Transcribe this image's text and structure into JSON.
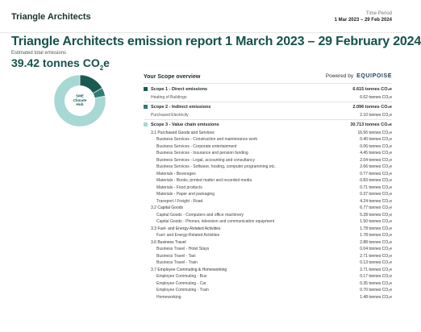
{
  "header": {
    "company": "Triangle Architects",
    "period_label": "Time Period",
    "period_value": "1 Mar 2023 – 29 Feb 2024"
  },
  "report": {
    "title": "Triangle Architects emission report 1 March 2023 – 29 February 2024",
    "total_label": "Estimated total emissions",
    "total_value": "39.42 tonnes CO",
    "total_value_sub": "2",
    "total_value_tail": "e"
  },
  "donut": {
    "center_lines": [
      "SME",
      "Climate",
      "Hub"
    ],
    "slices": [
      {
        "label": "Scope 1",
        "value": 6.615,
        "color": "#1b5a52"
      },
      {
        "label": "Scope 2",
        "value": 2.096,
        "color": "#2e7d74"
      },
      {
        "label": "Scope 3",
        "value": 30.713,
        "color": "#a7d8d3"
      }
    ]
  },
  "overview": {
    "title": "Your Scope overview",
    "powered_label": "Powered by",
    "brand": "EQUIPOISE"
  },
  "rows": [
    {
      "type": "scope",
      "color": "#1b5a52",
      "label": "Scope 1 - Direct emissions",
      "value": "6.615 tonnes CO₂e"
    },
    {
      "type": "sub",
      "label": "Heating of Buildings",
      "value": "6.62 tonnes CO₂e"
    },
    {
      "type": "scope",
      "color": "#2e7d74",
      "label": "Scope 2 - Indirect emissions",
      "value": "2.096 tonnes CO₂e"
    },
    {
      "type": "sub",
      "label": "Purchased Electricity",
      "value": "2.10 tonnes CO₂e"
    },
    {
      "type": "scope",
      "color": "#a7d8d3",
      "label": "Scope 3 - Value chain emissions",
      "value": "30.713 tonnes CO₂e"
    },
    {
      "type": "cat",
      "label": "3.1 Purchased Goods and Services",
      "value": "16.56 tonnes CO₂e"
    },
    {
      "type": "item",
      "label": "Business Services - Construction and maintenance work",
      "value": "0.40 tonnes CO₂e"
    },
    {
      "type": "item",
      "label": "Business Services - Corporate entertainment",
      "value": "0.06 tonnes CO₂e"
    },
    {
      "type": "item",
      "label": "Business Services - Insurance and pension funding",
      "value": "4.45 tonnes CO₂e"
    },
    {
      "type": "item",
      "label": "Business Services - Legal, accounting and consultancy",
      "value": "2.04 tonnes CO₂e"
    },
    {
      "type": "item",
      "label": "Business Services - Software, hosting, computer programming etc.",
      "value": "2.66 tonnes CO₂e"
    },
    {
      "type": "item",
      "label": "Materials - Beverages",
      "value": "0.77 tonnes CO₂e"
    },
    {
      "type": "item",
      "label": "Materials - Books, printed matter and recorded media",
      "value": "0.83 tonnes CO₂e"
    },
    {
      "type": "item",
      "label": "Materials - Food products",
      "value": "0.71 tonnes CO₂e"
    },
    {
      "type": "item",
      "label": "Materials - Paper and packaging",
      "value": "0.37 tonnes CO₂e"
    },
    {
      "type": "item",
      "label": "Transport / Freight - Road",
      "value": "4.24 tonnes CO₂e"
    },
    {
      "type": "cat",
      "label": "3.2 Capital Goods",
      "value": "6.77 tonnes CO₂e"
    },
    {
      "type": "item",
      "label": "Capital Goods - Computers and office machinery",
      "value": "5.28 tonnes CO₂e"
    },
    {
      "type": "item",
      "label": "Capital Goods - Phones, television and communication equipment",
      "value": "1.50 tonnes CO₂e"
    },
    {
      "type": "cat",
      "label": "3.3 Fuel- and Energy-Related Activities",
      "value": "1.78 tonnes CO₂e"
    },
    {
      "type": "item",
      "label": "Fuel- and Energy-Related Activities",
      "value": "1.78 tonnes CO₂e"
    },
    {
      "type": "cat",
      "label": "3.6 Business Travel",
      "value": "2.88 tonnes CO₂e"
    },
    {
      "type": "item",
      "label": "Business Travel - Hotel Stays",
      "value": "0.04 tonnes CO₂e"
    },
    {
      "type": "item",
      "label": "Business Travel - Taxi",
      "value": "2.71 tonnes CO₂e"
    },
    {
      "type": "item",
      "label": "Business Travel - Train",
      "value": "0.13 tonnes CO₂e"
    },
    {
      "type": "cat",
      "label": "3.7 Employee Commuting & Homeworking",
      "value": "2.71 tonnes CO₂e"
    },
    {
      "type": "item",
      "label": "Employee Commuting - Bus",
      "value": "0.17 tonnes CO₂e"
    },
    {
      "type": "item",
      "label": "Employee Commuting - Car",
      "value": "0.35 tonnes CO₂e"
    },
    {
      "type": "item",
      "label": "Employee Commuting - Train",
      "value": "0.70 tonnes CO₂e"
    },
    {
      "type": "item",
      "label": "Homeworking",
      "value": "1.48 tonnes CO₂e"
    }
  ]
}
